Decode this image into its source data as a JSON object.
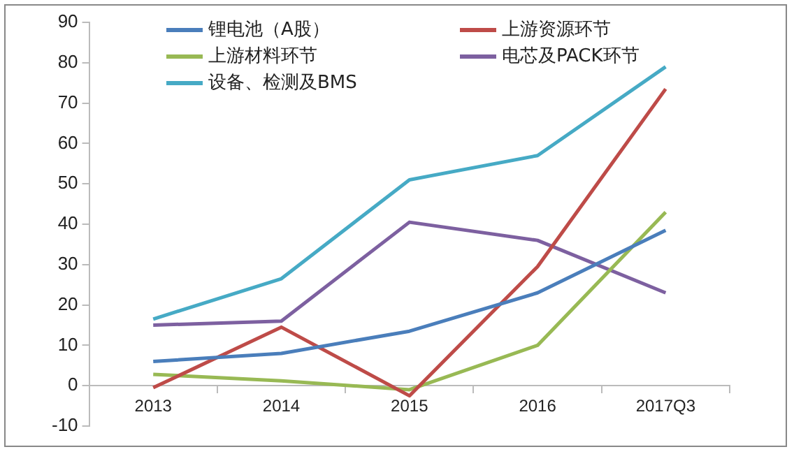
{
  "chart_data": {
    "type": "line",
    "categories": [
      "2013",
      "2014",
      "2015",
      "2016",
      "2017Q3"
    ],
    "series": [
      {
        "name": "锂电池（A股）",
        "color": "#4a7ebb",
        "values": [
          6,
          8,
          13.5,
          23,
          38.5
        ]
      },
      {
        "name": "上游资源环节",
        "color": "#be4b48",
        "values": [
          -0.5,
          14.5,
          -2.5,
          29.5,
          73.5
        ]
      },
      {
        "name": "上游材料环节",
        "color": "#98b954",
        "values": [
          2.8,
          1.2,
          -1,
          10,
          43
        ]
      },
      {
        "name": "电芯及PACK环节",
        "color": "#7d60a0",
        "values": [
          15,
          16,
          40.5,
          36,
          23
        ]
      },
      {
        "name": "设备、检测及BMS",
        "color": "#46aac5",
        "values": [
          16.5,
          26.5,
          51,
          57,
          79
        ]
      }
    ],
    "ylim": [
      -10,
      90
    ],
    "yticks": [
      -10,
      0,
      10,
      20,
      30,
      40,
      50,
      60,
      70,
      80,
      90
    ],
    "grid": false,
    "legend": "top",
    "marker": "none",
    "line_style": "solid"
  }
}
